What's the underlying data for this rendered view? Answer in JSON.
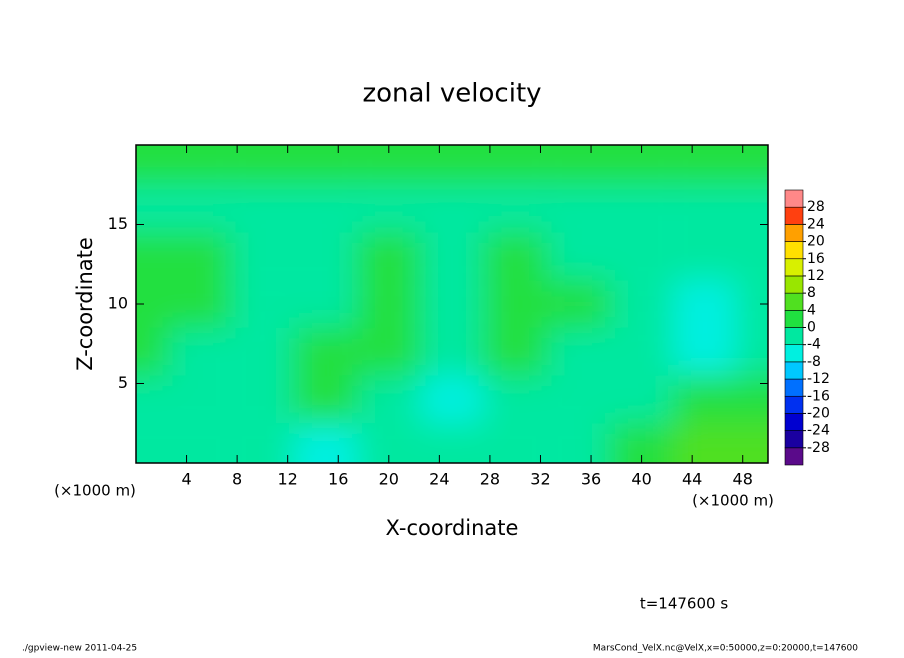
{
  "chart_data": {
    "type": "contour",
    "title": "zonal velocity",
    "x_label": "X-coordinate",
    "y_label": "Z-coordinate",
    "x_unit": "(×1000 m)",
    "x_unit_right": "(×1000 m)",
    "time_label": "t=147600 s",
    "footer_left": "./gpview-new  2011-04-25",
    "footer_right": "MarsCond_VelX.nc@VelX,x=0:50000,z=0:20000,t=147600",
    "xlim": [
      0,
      50
    ],
    "ylim": [
      0,
      20
    ],
    "xticks": [
      4,
      8,
      12,
      16,
      20,
      24,
      28,
      32,
      36,
      40,
      44,
      48
    ],
    "yticks": [
      5,
      10,
      15
    ],
    "x": [
      0,
      5,
      10,
      15,
      20,
      25,
      30,
      35,
      40,
      45,
      50
    ],
    "y": [
      1,
      4,
      7,
      10,
      13,
      16,
      19
    ],
    "z": [
      [
        -2,
        -2,
        -1,
        -8,
        -3,
        -2,
        -2,
        -1,
        2,
        6,
        4
      ],
      [
        -1,
        -4,
        -2,
        3,
        -1,
        -6,
        -1,
        -2,
        -3,
        2,
        1
      ],
      [
        1,
        -2,
        -1,
        1,
        0,
        -2,
        1,
        -1,
        -3,
        -8,
        -4
      ],
      [
        2,
        1,
        -1,
        -1,
        1,
        -1,
        1,
        0,
        -2,
        -5,
        -2
      ],
      [
        1,
        0,
        -1,
        -1,
        0,
        -1,
        0,
        -1,
        -1,
        -2,
        -1
      ],
      [
        -1,
        -1,
        -1,
        -1,
        -1,
        -1,
        -1,
        -1,
        -1,
        -1,
        -1
      ],
      [
        1,
        1,
        1,
        1,
        1,
        1,
        1,
        1,
        1,
        1,
        1
      ]
    ],
    "levels": [
      -28,
      -24,
      -20,
      -16,
      -12,
      -8,
      -4,
      0,
      4,
      8,
      12,
      16,
      20,
      24,
      28
    ],
    "colors": [
      "#5a0a8a",
      "#1a00a0",
      "#0000d0",
      "#0030f0",
      "#0070ff",
      "#00c8ff",
      "#00f0e0",
      "#00e8a0",
      "#20e040",
      "#50e020",
      "#99e600",
      "#d8f000",
      "#ffe000",
      "#ffa000",
      "#ff4010",
      "#ff8888"
    ]
  }
}
